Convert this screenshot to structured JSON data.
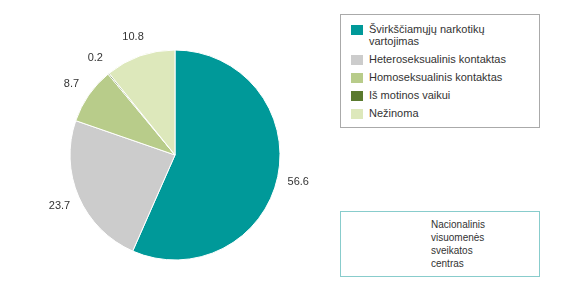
{
  "chart_data": {
    "type": "pie",
    "categories": [
      "Švirkščiamųjų narkotikų\nvartojimas",
      "Heteroseksualinis kontaktas",
      "Homoseksualinis kontaktas",
      "Iš motinos vaikui",
      "Nežinoma"
    ],
    "values": [
      56.6,
      23.7,
      8.7,
      0.2,
      10.8
    ],
    "colors": [
      "#009999",
      "#cccccc",
      "#b8cc8a",
      "#5a7a2e",
      "#dde8bb"
    ],
    "data_labels": true,
    "legend": "right",
    "annotations": [
      "Nacionalinis\nvisuomenės\nsveikatos\ncentras"
    ]
  }
}
